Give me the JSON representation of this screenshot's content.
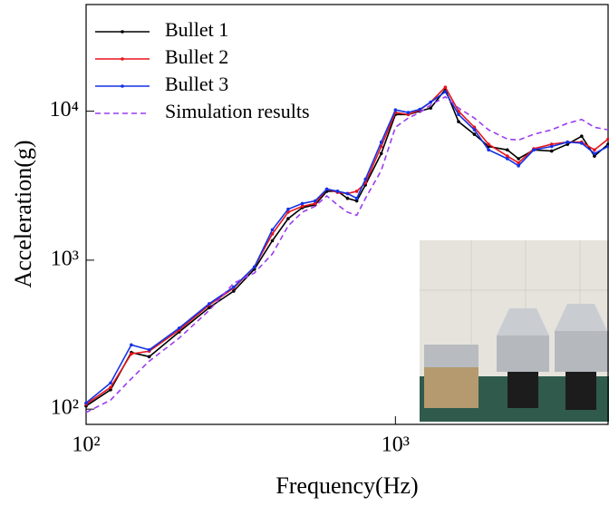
{
  "chart_data": {
    "type": "line",
    "x_label": "Frequency(Hz)",
    "y_label": "Acceleration(g)",
    "xscale": "log",
    "yscale": "log",
    "xlim": [
      100,
      4870
    ],
    "ylim": [
      79,
      52000
    ],
    "xticks": [
      {
        "value": 100,
        "label": "10²"
      },
      {
        "value": 1000,
        "label": "10³"
      }
    ],
    "yticks": [
      {
        "value": 100,
        "label": "10²"
      },
      {
        "value": 1000,
        "label": "10³"
      },
      {
        "value": 10000,
        "label": "10⁴"
      }
    ],
    "legend": "upper left",
    "x": [
      100,
      120,
      140,
      160,
      200,
      250,
      300,
      350,
      400,
      450,
      500,
      550,
      600,
      650,
      700,
      750,
      800,
      900,
      1000,
      1100,
      1200,
      1300,
      1450,
      1600,
      1800,
      2000,
      2300,
      2500,
      2800,
      3200,
      3600,
      4000,
      4400,
      4870
    ],
    "series": [
      {
        "name": "Bullet 1",
        "color": "#000000",
        "style": "solid",
        "values": [
          105,
          135,
          240,
          225,
          330,
          480,
          620,
          870,
          1350,
          1900,
          2250,
          2350,
          2900,
          2900,
          2600,
          2500,
          3200,
          5200,
          9500,
          9500,
          10000,
          10500,
          14000,
          8500,
          7000,
          5800,
          5500,
          4800,
          5500,
          5400,
          6000,
          6800,
          5000,
          6000
        ]
      },
      {
        "name": "Bullet 2",
        "color": "#e8141c",
        "style": "solid",
        "values": [
          108,
          140,
          235,
          245,
          340,
          500,
          650,
          900,
          1500,
          2100,
          2300,
          2400,
          3000,
          2850,
          2800,
          2900,
          3300,
          5800,
          9800,
          9500,
          10200,
          11500,
          14500,
          10000,
          7800,
          6000,
          5000,
          4500,
          5600,
          6000,
          6200,
          6200,
          5500,
          6500
        ]
      },
      {
        "name": "Bullet 3",
        "color": "#1432e6",
        "style": "solid",
        "values": [
          110,
          150,
          270,
          250,
          350,
          510,
          660,
          900,
          1600,
          2200,
          2400,
          2500,
          3000,
          2900,
          2800,
          2600,
          3500,
          6200,
          10200,
          9800,
          10300,
          11500,
          13500,
          9500,
          7500,
          5500,
          4800,
          4300,
          5500,
          5800,
          6200,
          6100,
          5200,
          5800
        ]
      },
      {
        "name": "Simulation results",
        "color": "#9b3cf0",
        "style": "dashed",
        "values": [
          95,
          115,
          160,
          210,
          300,
          460,
          700,
          820,
          1100,
          1700,
          2100,
          2300,
          2700,
          2350,
          2100,
          2000,
          2600,
          4000,
          7800,
          9000,
          9800,
          11000,
          12500,
          10500,
          9000,
          7500,
          6500,
          6400,
          7000,
          7500,
          8300,
          8800,
          7800,
          7500
        ]
      }
    ]
  }
}
